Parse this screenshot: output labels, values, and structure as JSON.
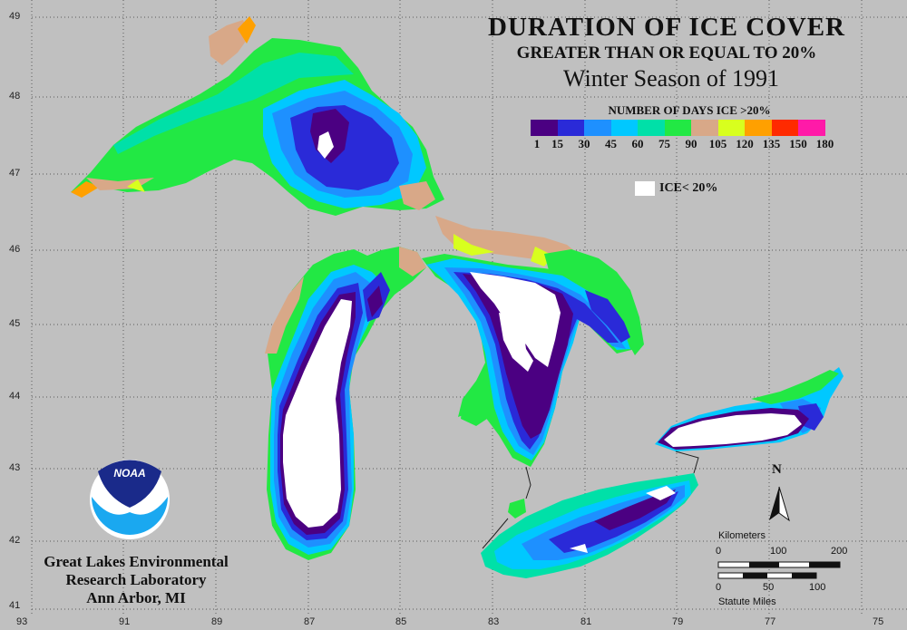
{
  "title": {
    "line1": "DURATION OF ICE COVER",
    "line2": "GREATER THAN OR EQUAL TO 20%",
    "line3": "Winter Season of 1991"
  },
  "legend": {
    "title": "NUMBER OF DAYS ICE >20%",
    "classes": [
      {
        "from": 1,
        "color": "#4b0082"
      },
      {
        "from": 15,
        "color": "#2a2ad8"
      },
      {
        "from": 30,
        "color": "#1e90ff"
      },
      {
        "from": 45,
        "color": "#00c8ff"
      },
      {
        "from": 60,
        "color": "#00e0a8"
      },
      {
        "from": 75,
        "color": "#22e844"
      },
      {
        "from": 90,
        "color": "#d8a888"
      },
      {
        "from": 105,
        "color": "#d8ff1e"
      },
      {
        "from": 120,
        "color": "#ffa000"
      },
      {
        "from": 135,
        "color": "#ff2a00"
      },
      {
        "from": 150,
        "color": "#ff1aa8"
      }
    ],
    "tick_labels": [
      "1",
      "15",
      "30",
      "45",
      "60",
      "75",
      "90",
      "105",
      "120",
      "135",
      "150",
      "180"
    ],
    "ice_label": "ICE< 20%",
    "ice_color": "#ffffff"
  },
  "axes": {
    "longitude_labels": [
      "93",
      "91",
      "89",
      "87",
      "85",
      "83",
      "81",
      "79",
      "77",
      "75"
    ],
    "latitude_labels": [
      "49",
      "48",
      "47",
      "46",
      "45",
      "44",
      "43",
      "42",
      "41"
    ]
  },
  "scale_bar": {
    "km_label": "Kilometers",
    "km_ticks": [
      "0",
      "100",
      "200"
    ],
    "mi_ticks": [
      "0",
      "50",
      "100"
    ],
    "mi_label": "Statute Miles"
  },
  "north_label": "N",
  "credit": {
    "logo_text": "NOAA",
    "line1": "Great Lakes Environmental",
    "line2": "Research Laboratory",
    "line3": "Ann Arbor, MI"
  },
  "colors": {
    "background": "#c0c0c0",
    "grid": "#5a5a5a"
  }
}
